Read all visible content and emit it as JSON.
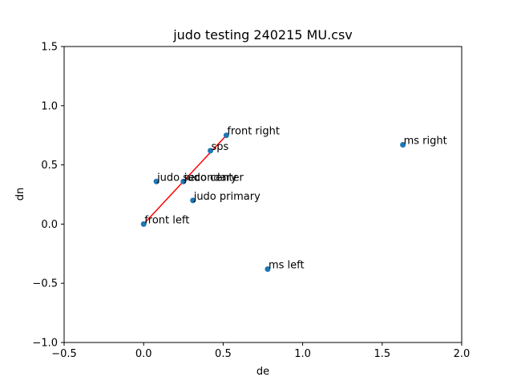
{
  "chart_data": {
    "type": "scatter",
    "title": "judo testing 240215 MU.csv",
    "xlabel": "de",
    "ylabel": "dn",
    "xlim": [
      -0.5,
      2.0
    ],
    "ylim": [
      -1.0,
      1.5
    ],
    "xticks": [
      "−0.5",
      "0.0",
      "0.5",
      "1.0",
      "1.5",
      "2.0"
    ],
    "yticks": [
      "−1.0",
      "−0.5",
      "0.0",
      "0.5",
      "1.0",
      "1.5"
    ],
    "grid": false,
    "point_color": "#1f77b4",
    "line_color": "#ff0000",
    "points": [
      {
        "label": "front left",
        "x": 0.0,
        "y": 0.0
      },
      {
        "label": "front right",
        "x": 0.52,
        "y": 0.75
      },
      {
        "label": "sps",
        "x": 0.42,
        "y": 0.62
      },
      {
        "label": "judo center",
        "x": 0.25,
        "y": 0.36
      },
      {
        "label": "judo secondary",
        "x": 0.08,
        "y": 0.36
      },
      {
        "label": "judo primary",
        "x": 0.31,
        "y": 0.2
      },
      {
        "label": "ms right",
        "x": 1.63,
        "y": 0.67
      },
      {
        "label": "ms left",
        "x": 0.78,
        "y": -0.38
      }
    ],
    "line": {
      "x": [
        0.0,
        0.52
      ],
      "y": [
        0.0,
        0.75
      ]
    }
  }
}
